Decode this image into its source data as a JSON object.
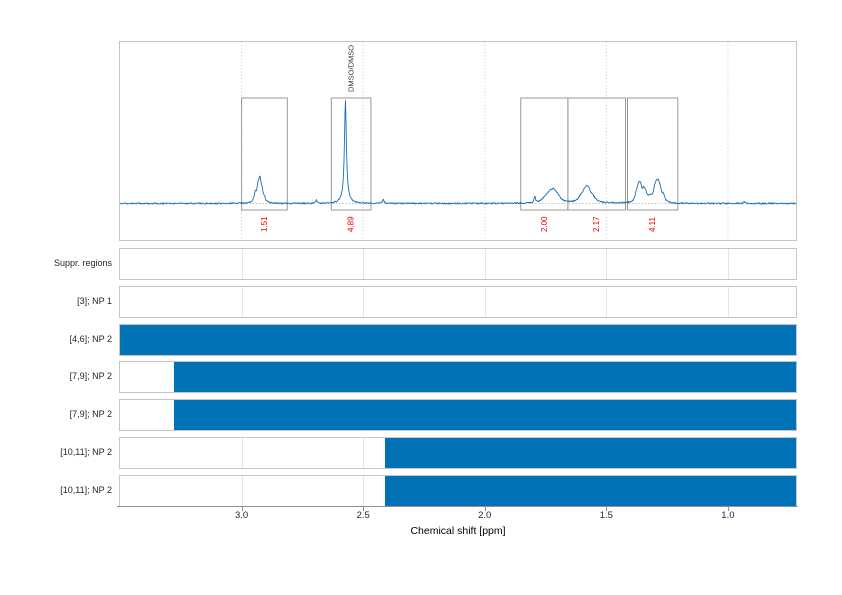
{
  "chart_data": {
    "type": "line",
    "title": "",
    "xlabel": "Chemical shift [ppm]",
    "x_axis": {
      "range_ppm": [
        3.5,
        0.72
      ],
      "direction": "reversed",
      "ticks": [
        3.0,
        2.5,
        2.0,
        1.5,
        1.0
      ],
      "tick_labels": [
        "3.0",
        "2.5",
        "2.0",
        "1.5",
        "1.0"
      ]
    },
    "spectrum": {
      "line_color": "#1b6fb5",
      "solvent_label": "DMSO/DMSO",
      "solvent_label_ppm": 2.55,
      "peaks_summary": [
        {
          "ppm": 2.93,
          "type": "multiplet",
          "integral": "1.51"
        },
        {
          "ppm": 2.57,
          "type": "singlet (DMSO)",
          "integral": "4.89"
        },
        {
          "ppm": 1.72,
          "type": "multiplet",
          "integral": "2.00"
        },
        {
          "ppm": 1.58,
          "type": "multiplet",
          "integral": "2.17"
        },
        {
          "ppm": 1.31,
          "type": "multiplet",
          "integral": "4.11"
        }
      ],
      "integration_regions": [
        {
          "from_ppm": 3.0,
          "to_ppm": 2.812,
          "integral": "1.51"
        },
        {
          "from_ppm": 2.631,
          "to_ppm": 2.468,
          "integral": "4.89"
        },
        {
          "from_ppm": 1.852,
          "to_ppm": 1.658,
          "integral": "2.00"
        },
        {
          "from_ppm": 1.658,
          "to_ppm": 1.421,
          "integral": "2.17"
        },
        {
          "from_ppm": 1.413,
          "to_ppm": 1.206,
          "integral": "4.11"
        }
      ],
      "components": [
        {
          "ppm": 2.944,
          "h": 8,
          "w": 1.3
        },
        {
          "ppm": 2.932,
          "h": 15,
          "w": 1.4
        },
        {
          "ppm": 2.924,
          "h": 19,
          "w": 1.3
        },
        {
          "ppm": 2.916,
          "h": 9,
          "w": 1.3
        },
        {
          "ppm": 2.906,
          "h": 4,
          "w": 1.2
        },
        {
          "ppm": 2.692,
          "h": 3,
          "w": 0.8
        },
        {
          "ppm": 2.573,
          "h": 96,
          "w": 1.1
        },
        {
          "ppm": 2.573,
          "h": 8,
          "w": 3.0
        },
        {
          "ppm": 2.417,
          "h": 4,
          "w": 0.8
        },
        {
          "ppm": 1.794,
          "h": 6,
          "w": 0.8
        },
        {
          "ppm": 1.749,
          "h": 4,
          "w": 4.0
        },
        {
          "ppm": 1.733,
          "h": 7,
          "w": 3.5
        },
        {
          "ppm": 1.716,
          "h": 9,
          "w": 3.0
        },
        {
          "ppm": 1.7,
          "h": 5,
          "w": 3.5
        },
        {
          "ppm": 1.601,
          "h": 5,
          "w": 3.5
        },
        {
          "ppm": 1.585,
          "h": 10,
          "w": 3.0
        },
        {
          "ppm": 1.573,
          "h": 8,
          "w": 3.0
        },
        {
          "ppm": 1.556,
          "h": 4,
          "w": 3.5
        },
        {
          "ppm": 1.376,
          "h": 7,
          "w": 1.6
        },
        {
          "ppm": 1.368,
          "h": 11,
          "w": 1.6
        },
        {
          "ppm": 1.36,
          "h": 13,
          "w": 1.6
        },
        {
          "ppm": 1.347,
          "h": 9,
          "w": 1.6
        },
        {
          "ppm": 1.339,
          "h": 7,
          "w": 1.6
        },
        {
          "ppm": 1.321,
          "h": 5,
          "w": 2.5
        },
        {
          "ppm": 1.302,
          "h": 9,
          "w": 1.6
        },
        {
          "ppm": 1.294,
          "h": 12,
          "w": 1.6
        },
        {
          "ppm": 1.286,
          "h": 13,
          "w": 1.6
        },
        {
          "ppm": 1.278,
          "h": 9,
          "w": 1.6
        },
        {
          "ppm": 1.265,
          "h": 6,
          "w": 1.6
        },
        {
          "ppm": 0.933,
          "h": 2,
          "w": 0.8
        }
      ]
    },
    "tracks": {
      "bar_color": "#0072b5",
      "rows": [
        {
          "label": "Suppr. regions",
          "bars": []
        },
        {
          "label": "[3]; NP 1",
          "bars": []
        },
        {
          "label": "[4,6]; NP 2",
          "bars": [
            {
              "from_ppm": 3.5,
              "to_ppm": 0.72
            }
          ]
        },
        {
          "label": "[7,9]; NP 2",
          "bars": [
            {
              "from_ppm": 3.28,
              "to_ppm": 0.72
            }
          ]
        },
        {
          "label": "[7,9]; NP 2",
          "bars": [
            {
              "from_ppm": 3.28,
              "to_ppm": 0.72
            }
          ]
        },
        {
          "label": "[10,11]; NP 2",
          "bars": [
            {
              "from_ppm": 2.41,
              "to_ppm": 0.72
            }
          ]
        },
        {
          "label": "[10,11]; NP 2",
          "bars": [
            {
              "from_ppm": 2.41,
              "to_ppm": 0.72
            }
          ]
        }
      ]
    },
    "colors": {
      "integral_label_red": "#e60000",
      "grid_dotted": "#c9c9c9",
      "box_border": "#999999",
      "axis_line": "#909090"
    }
  }
}
